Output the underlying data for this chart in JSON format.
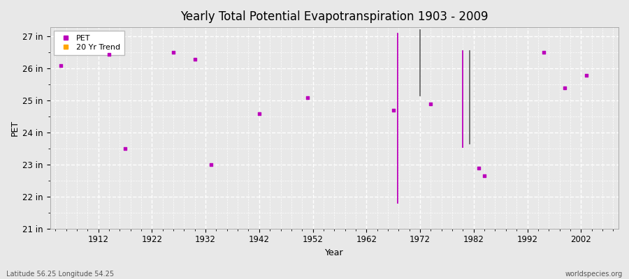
{
  "title": "Yearly Total Potential Evapotranspiration 1903 - 2009",
  "xlabel": "Year",
  "ylabel": "PET",
  "xlim": [
    1903,
    2009
  ],
  "ylim": [
    21,
    27.3
  ],
  "ytick_vals": [
    21,
    22,
    23,
    24,
    25,
    26,
    27
  ],
  "ytick_labels": [
    "21 in",
    "22 in",
    "23 in",
    "24 in",
    "25 in",
    "26 in",
    "27 in"
  ],
  "xtick_vals": [
    1912,
    1922,
    1932,
    1942,
    1952,
    1962,
    1972,
    1982,
    1992,
    2002
  ],
  "background_color": "#e8e8e8",
  "plot_bg_color": "#e8e8e8",
  "grid_color": "#ffffff",
  "pet_color": "#bb00bb",
  "trend_color_dark": "#666666",
  "marker_size": 10,
  "subtitle_left": "Latitude 56.25 Longitude 54.25",
  "subtitle_right": "worldspecies.org",
  "pet_points": [
    [
      1905,
      26.1
    ],
    [
      1914,
      26.45
    ],
    [
      1917,
      23.5
    ],
    [
      1926,
      26.5
    ],
    [
      1930,
      26.3
    ],
    [
      1933,
      23.0
    ],
    [
      1942,
      24.6
    ],
    [
      1951,
      25.1
    ],
    [
      1967,
      24.7
    ],
    [
      1974,
      24.9
    ],
    [
      1983,
      22.9
    ],
    [
      1984,
      22.65
    ],
    [
      1995,
      26.5
    ],
    [
      1999,
      25.4
    ],
    [
      2003,
      25.8
    ]
  ],
  "magenta_lines": [
    {
      "x": 1967.8,
      "y1": 21.8,
      "y2": 27.1
    },
    {
      "x": 1980.0,
      "y1": 23.55,
      "y2": 26.55
    }
  ],
  "dark_lines": [
    {
      "x": 1972.0,
      "y1": 25.15,
      "y2": 27.2
    },
    {
      "x": 1981.2,
      "y1": 23.65,
      "y2": 26.55
    }
  ]
}
